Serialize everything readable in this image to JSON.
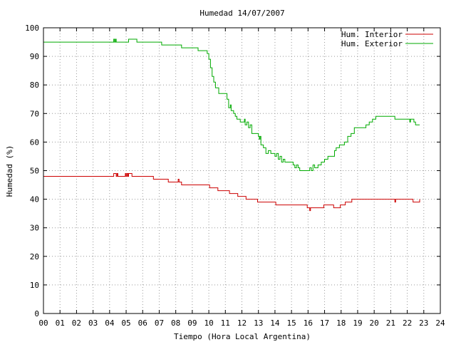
{
  "chart_data": {
    "type": "line",
    "title": "Humedad 14/07/2007",
    "xlabel": "Tiempo (Hora Local Argentina)",
    "ylabel": "Humedad (%)",
    "xlim": [
      0,
      24
    ],
    "ylim": [
      0,
      100
    ],
    "x_ticks": [
      "00",
      "01",
      "02",
      "03",
      "04",
      "05",
      "06",
      "07",
      "08",
      "09",
      "10",
      "11",
      "12",
      "13",
      "14",
      "15",
      "16",
      "17",
      "18",
      "19",
      "20",
      "21",
      "22",
      "23",
      "24"
    ],
    "y_ticks": [
      "0",
      "10",
      "20",
      "30",
      "40",
      "50",
      "60",
      "70",
      "80",
      "90",
      "100"
    ],
    "grid": true,
    "legend_position": "top-right",
    "colors": {
      "interior": "#cc0000",
      "exterior": "#00aa00",
      "grid": "#999999",
      "frame": "#000000"
    },
    "series": [
      {
        "name": "Hum. Interior",
        "color": "#cc0000",
        "points": [
          [
            0,
            48
          ],
          [
            4.2,
            48
          ],
          [
            4.25,
            49
          ],
          [
            4.4,
            48
          ],
          [
            4.45,
            49
          ],
          [
            4.5,
            48
          ],
          [
            4.9,
            48
          ],
          [
            4.95,
            49
          ],
          [
            5.0,
            48
          ],
          [
            5.05,
            49
          ],
          [
            5.1,
            48
          ],
          [
            5.15,
            49
          ],
          [
            5.3,
            49
          ],
          [
            5.35,
            48
          ],
          [
            6.6,
            48
          ],
          [
            6.65,
            47
          ],
          [
            7.5,
            47
          ],
          [
            7.55,
            46
          ],
          [
            8.1,
            46
          ],
          [
            8.15,
            47
          ],
          [
            8.2,
            46
          ],
          [
            8.3,
            46
          ],
          [
            8.35,
            45
          ],
          [
            10.0,
            45
          ],
          [
            10.05,
            44
          ],
          [
            10.5,
            44
          ],
          [
            10.55,
            43
          ],
          [
            11.2,
            43
          ],
          [
            11.25,
            42
          ],
          [
            11.7,
            42
          ],
          [
            11.75,
            41
          ],
          [
            12.2,
            41
          ],
          [
            12.25,
            40
          ],
          [
            12.9,
            40
          ],
          [
            12.95,
            39
          ],
          [
            13.6,
            39
          ],
          [
            14.0,
            39
          ],
          [
            14.05,
            38
          ],
          [
            15.9,
            38
          ],
          [
            15.95,
            37
          ],
          [
            16.05,
            37
          ],
          [
            16.1,
            36
          ],
          [
            16.15,
            37
          ],
          [
            16.2,
            37
          ],
          [
            16.9,
            37
          ],
          [
            16.95,
            38
          ],
          [
            17.5,
            38
          ],
          [
            17.55,
            37
          ],
          [
            17.6,
            37
          ],
          [
            17.9,
            37
          ],
          [
            17.95,
            38
          ],
          [
            18.2,
            38
          ],
          [
            18.25,
            39
          ],
          [
            18.6,
            39
          ],
          [
            18.65,
            40
          ],
          [
            21.2,
            40
          ],
          [
            21.25,
            39
          ],
          [
            21.3,
            40
          ],
          [
            22.3,
            40
          ],
          [
            22.35,
            39
          ],
          [
            22.7,
            39
          ],
          [
            22.75,
            40
          ]
        ]
      },
      {
        "name": "Hum. Exterior",
        "color": "#00aa00",
        "points": [
          [
            0,
            95
          ],
          [
            4.2,
            95
          ],
          [
            4.25,
            96
          ],
          [
            4.3,
            95
          ],
          [
            4.35,
            96
          ],
          [
            4.4,
            95
          ],
          [
            5.1,
            95
          ],
          [
            5.15,
            96
          ],
          [
            5.6,
            96
          ],
          [
            5.65,
            95
          ],
          [
            7.1,
            95
          ],
          [
            7.15,
            94
          ],
          [
            8.3,
            94
          ],
          [
            8.35,
            93
          ],
          [
            9.3,
            93
          ],
          [
            9.35,
            92
          ],
          [
            9.6,
            92
          ],
          [
            9.9,
            91
          ],
          [
            10.0,
            89
          ],
          [
            10.1,
            86
          ],
          [
            10.2,
            83
          ],
          [
            10.3,
            81
          ],
          [
            10.4,
            79
          ],
          [
            10.6,
            77
          ],
          [
            11.0,
            77
          ],
          [
            11.1,
            75
          ],
          [
            11.2,
            72
          ],
          [
            11.3,
            73
          ],
          [
            11.35,
            71
          ],
          [
            11.5,
            70
          ],
          [
            11.6,
            69
          ],
          [
            11.7,
            68
          ],
          [
            11.9,
            67
          ],
          [
            12.1,
            67
          ],
          [
            12.15,
            68
          ],
          [
            12.2,
            66
          ],
          [
            12.3,
            67
          ],
          [
            12.4,
            65
          ],
          [
            12.5,
            66
          ],
          [
            12.6,
            63
          ],
          [
            12.9,
            63
          ],
          [
            13.0,
            62
          ],
          [
            13.05,
            61
          ],
          [
            13.1,
            62
          ],
          [
            13.15,
            59
          ],
          [
            13.3,
            58
          ],
          [
            13.4,
            58
          ],
          [
            13.45,
            56
          ],
          [
            13.6,
            57
          ],
          [
            13.7,
            57
          ],
          [
            13.75,
            56
          ],
          [
            13.9,
            56
          ],
          [
            14.0,
            55
          ],
          [
            14.1,
            56
          ],
          [
            14.2,
            54
          ],
          [
            14.3,
            55
          ],
          [
            14.4,
            53
          ],
          [
            14.5,
            54
          ],
          [
            14.6,
            53
          ],
          [
            15.0,
            53
          ],
          [
            15.1,
            52
          ],
          [
            15.2,
            51
          ],
          [
            15.3,
            52
          ],
          [
            15.4,
            51
          ],
          [
            15.5,
            50
          ],
          [
            16.0,
            50
          ],
          [
            16.1,
            51
          ],
          [
            16.2,
            50
          ],
          [
            16.3,
            52
          ],
          [
            16.4,
            51
          ],
          [
            16.6,
            52
          ],
          [
            16.8,
            53
          ],
          [
            17.0,
            54
          ],
          [
            17.2,
            55
          ],
          [
            17.5,
            55
          ],
          [
            17.6,
            57
          ],
          [
            17.7,
            58
          ],
          [
            17.9,
            59
          ],
          [
            18.2,
            60
          ],
          [
            18.4,
            62
          ],
          [
            18.6,
            63
          ],
          [
            18.8,
            65
          ],
          [
            19.4,
            65
          ],
          [
            19.5,
            66
          ],
          [
            19.7,
            67
          ],
          [
            19.9,
            68
          ],
          [
            20.1,
            69
          ],
          [
            21.2,
            69
          ],
          [
            21.25,
            68
          ],
          [
            22.1,
            68
          ],
          [
            22.15,
            67
          ],
          [
            22.2,
            68
          ],
          [
            22.4,
            67
          ],
          [
            22.5,
            66
          ],
          [
            22.75,
            66
          ]
        ]
      }
    ]
  }
}
